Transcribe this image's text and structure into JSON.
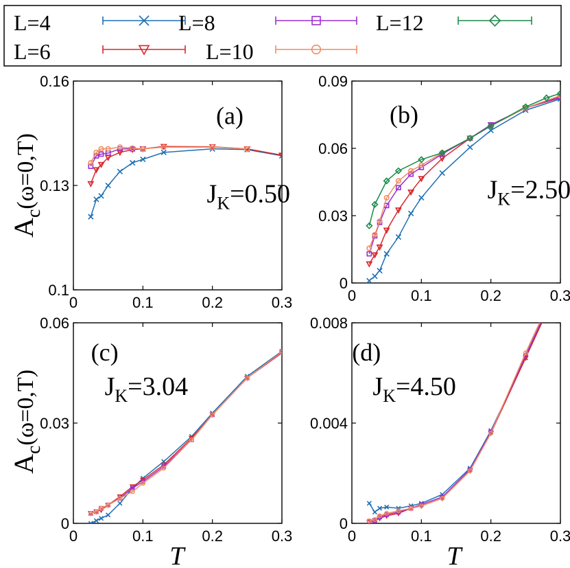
{
  "legend": [
    {
      "label": "L=4",
      "color": "#1f6fb4",
      "marker": "x"
    },
    {
      "label": "L=6",
      "color": "#d9262a",
      "marker": "triangle-down"
    },
    {
      "label": "L=8",
      "color": "#9a2fd0",
      "marker": "square"
    },
    {
      "label": "L=10",
      "color": "#f08c62",
      "marker": "circle"
    },
    {
      "label": "L=12",
      "color": "#1a8a4a",
      "marker": "diamond"
    }
  ],
  "xlabel": "T",
  "ylabel": "A_c(ω=0,T)",
  "chart_data": [
    {
      "type": "line",
      "panel": "(a)",
      "annotation": "J_K=0.50",
      "xlim": [
        0,
        0.3
      ],
      "ylim": [
        0.1,
        0.16
      ],
      "xticks": [
        "0",
        "0.1",
        "0.2",
        "0.3"
      ],
      "yticks": [
        "0.1",
        "0.13",
        "0.16"
      ],
      "series": [
        {
          "name": "L=4",
          "x": [
            0.025,
            0.033,
            0.04,
            0.05,
            0.067,
            0.085,
            0.1,
            0.13,
            0.2,
            0.25,
            0.3
          ],
          "y": [
            0.121,
            0.126,
            0.127,
            0.13,
            0.134,
            0.1365,
            0.1375,
            0.1395,
            0.1405,
            0.1403,
            0.1385
          ]
        },
        {
          "name": "L=6",
          "x": [
            0.025,
            0.033,
            0.04,
            0.05,
            0.067,
            0.085,
            0.1,
            0.13,
            0.2,
            0.25,
            0.3
          ],
          "y": [
            0.1305,
            0.1345,
            0.136,
            0.138,
            0.1395,
            0.1403,
            0.1405,
            0.1412,
            0.1411,
            0.1405,
            0.1387
          ]
        },
        {
          "name": "L=8",
          "x": [
            0.025,
            0.033,
            0.04,
            0.05,
            0.067,
            0.085,
            0.1
          ],
          "y": [
            0.1355,
            0.1385,
            0.139,
            0.1393,
            0.1405,
            0.1405,
            0.1405
          ]
        },
        {
          "name": "L=10",
          "x": [
            0.025,
            0.033,
            0.04,
            0.05,
            0.067,
            0.085,
            0.1,
            0.13,
            0.2,
            0.25
          ],
          "y": [
            0.1365,
            0.1395,
            0.1405,
            0.1405,
            0.141,
            0.1407,
            0.1405,
            0.141,
            0.141,
            0.1405
          ]
        }
      ]
    },
    {
      "type": "line",
      "panel": "(b)",
      "annotation": "J_K=2.50",
      "xlim": [
        0,
        0.3
      ],
      "ylim": [
        0,
        0.09
      ],
      "xticks": [
        "0",
        "0.1",
        "0.2",
        "0.3"
      ],
      "yticks": [
        "0",
        "0.03",
        "0.06",
        "0.09"
      ],
      "series": [
        {
          "name": "L=4",
          "x": [
            0.025,
            0.033,
            0.04,
            0.05,
            0.067,
            0.085,
            0.1,
            0.13,
            0.17,
            0.2,
            0.25,
            0.3
          ],
          "y": [
            0.001,
            0.003,
            0.0055,
            0.013,
            0.0205,
            0.031,
            0.038,
            0.049,
            0.0605,
            0.068,
            0.077,
            0.082
          ]
        },
        {
          "name": "L=6",
          "x": [
            0.025,
            0.033,
            0.04,
            0.05,
            0.067,
            0.085,
            0.1,
            0.13,
            0.17,
            0.2,
            0.25,
            0.3
          ],
          "y": [
            0.0085,
            0.0125,
            0.016,
            0.0235,
            0.0325,
            0.0405,
            0.0465,
            0.0555,
            0.0645,
            0.0705,
            0.078,
            0.0825
          ]
        },
        {
          "name": "L=8",
          "x": [
            0.025,
            0.033,
            0.04,
            0.05,
            0.067,
            0.085,
            0.1,
            0.13,
            0.17,
            0.2,
            0.25,
            0.3
          ],
          "y": [
            0.013,
            0.021,
            0.027,
            0.0345,
            0.0425,
            0.0485,
            0.0515,
            0.0575,
            0.0645,
            0.0705,
            0.078,
            0.083
          ]
        },
        {
          "name": "L=10",
          "x": [
            0.025,
            0.033,
            0.04,
            0.05,
            0.067,
            0.085,
            0.1,
            0.13,
            0.17,
            0.2,
            0.25,
            0.3
          ],
          "y": [
            0.0155,
            0.0215,
            0.0275,
            0.038,
            0.0455,
            0.05,
            0.0525,
            0.058,
            0.0645,
            0.07,
            0.078,
            0.0835
          ]
        },
        {
          "name": "L=12",
          "x": [
            0.025,
            0.033,
            0.05,
            0.067,
            0.1,
            0.13,
            0.17,
            0.2,
            0.25,
            0.28,
            0.3
          ],
          "y": [
            0.0255,
            0.035,
            0.0455,
            0.05,
            0.055,
            0.058,
            0.0645,
            0.07,
            0.0785,
            0.0825,
            0.0845
          ]
        }
      ]
    },
    {
      "type": "line",
      "panel": "(c)",
      "annotation": "J_K=3.04",
      "xlim": [
        0,
        0.3
      ],
      "ylim": [
        0,
        0.06
      ],
      "xticks": [
        "0",
        "0.1",
        "0.2",
        "0.3"
      ],
      "yticks": [
        "0",
        "0.03",
        "0.06"
      ],
      "series": [
        {
          "name": "L=4",
          "x": [
            0.025,
            0.033,
            0.04,
            0.05,
            0.067,
            0.085,
            0.1,
            0.13,
            0.17,
            0.2,
            0.25,
            0.3
          ],
          "y": [
            0.0,
            0.0008,
            0.0015,
            0.0025,
            0.006,
            0.0105,
            0.0135,
            0.0185,
            0.026,
            0.033,
            0.044,
            0.0515
          ]
        },
        {
          "name": "L=6",
          "x": [
            0.025,
            0.033,
            0.04,
            0.05,
            0.067,
            0.085,
            0.1,
            0.13,
            0.17,
            0.2,
            0.25,
            0.3
          ],
          "y": [
            0.003,
            0.0035,
            0.004,
            0.0055,
            0.008,
            0.011,
            0.013,
            0.0175,
            0.0255,
            0.0325,
            0.0435,
            0.051
          ]
        },
        {
          "name": "L=8",
          "x": [
            0.025,
            0.033,
            0.04,
            0.05,
            0.067,
            0.085,
            0.1,
            0.13,
            0.17,
            0.2,
            0.25,
            0.3
          ],
          "y": [
            0.003,
            0.0035,
            0.0045,
            0.0055,
            0.0075,
            0.0105,
            0.0125,
            0.017,
            0.025,
            0.0325,
            0.0435,
            0.0512
          ]
        },
        {
          "name": "L=10",
          "x": [
            0.025,
            0.033,
            0.04,
            0.05,
            0.067,
            0.085,
            0.1,
            0.13,
            0.17,
            0.2,
            0.25,
            0.3
          ],
          "y": [
            0.003,
            0.0035,
            0.0045,
            0.0055,
            0.0075,
            0.0095,
            0.012,
            0.0165,
            0.025,
            0.0325,
            0.0435,
            0.0513
          ]
        }
      ]
    },
    {
      "type": "line",
      "panel": "(d)",
      "annotation": "J_K=4.50",
      "xlim": [
        0,
        0.3
      ],
      "ylim": [
        0,
        0.008
      ],
      "xticks": [
        "0",
        "0.1",
        "0.2",
        "0.3"
      ],
      "yticks": [
        "0",
        "0.004",
        "0.008"
      ],
      "series": [
        {
          "name": "L=4",
          "x": [
            0.025,
            0.033,
            0.04,
            0.05,
            0.067,
            0.085,
            0.1,
            0.13,
            0.17,
            0.2,
            0.25,
            0.28
          ],
          "y": [
            0.0008,
            0.00045,
            0.0006,
            0.00065,
            0.0006,
            0.0007,
            0.0008,
            0.00115,
            0.0022,
            0.0037,
            0.0066,
            0.0085
          ]
        },
        {
          "name": "L=6",
          "x": [
            0.025,
            0.033,
            0.04,
            0.05,
            0.067,
            0.085,
            0.1,
            0.13,
            0.17,
            0.2,
            0.25,
            0.28
          ],
          "y": [
            5e-05,
            0.0001,
            0.0002,
            0.0003,
            0.0004,
            0.0006,
            0.0007,
            0.001,
            0.0021,
            0.0036,
            0.0066,
            0.0084
          ]
        },
        {
          "name": "L=8",
          "x": [
            0.025,
            0.033,
            0.04,
            0.05,
            0.067,
            0.085,
            0.1,
            0.13,
            0.17,
            0.2,
            0.25,
            0.28
          ],
          "y": [
            8e-05,
            0.00012,
            0.00025,
            0.00035,
            0.00045,
            0.0006,
            0.00075,
            0.00105,
            0.00215,
            0.00365,
            0.0067,
            0.0085
          ]
        },
        {
          "name": "L=10",
          "x": [
            0.025,
            0.033,
            0.04,
            0.05,
            0.067,
            0.085,
            0.1,
            0.13,
            0.17,
            0.2,
            0.25,
            0.28
          ],
          "y": [
            0.0001,
            0.00015,
            0.0003,
            0.0004,
            0.0005,
            0.0006,
            0.0007,
            0.001,
            0.0021,
            0.0036,
            0.0068,
            0.0086
          ]
        }
      ]
    }
  ]
}
